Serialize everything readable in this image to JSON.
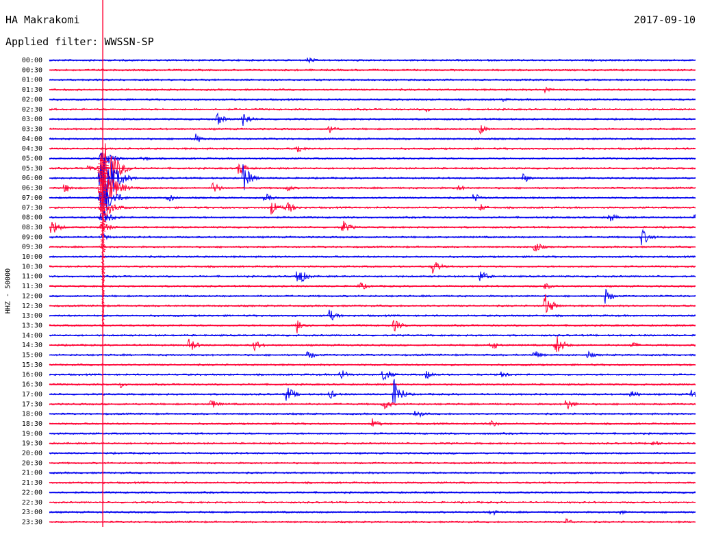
{
  "header": {
    "station": "HA Makrakomi",
    "date": "2017-09-10",
    "filter": "Applied filter: WWSSN-SP"
  },
  "axis": {
    "label": "HHZ - 50000"
  },
  "colors": {
    "even_row": "#0000ee",
    "odd_row": "#ff0033",
    "marker": "#ff0033",
    "background": "#ffffff"
  },
  "chart_data": {
    "type": "line",
    "subtype": "helicorder",
    "ylabel": "HHZ - 50000",
    "row_interval_minutes": 30,
    "row_labels": [
      "00:00",
      "00:30",
      "01:00",
      "01:30",
      "02:00",
      "02:30",
      "03:00",
      "03:30",
      "04:00",
      "04:30",
      "05:00",
      "05:30",
      "06:00",
      "06:30",
      "07:00",
      "07:30",
      "08:00",
      "08:30",
      "09:00",
      "09:30",
      "10:00",
      "10:30",
      "11:00",
      "11:30",
      "12:00",
      "12:30",
      "13:00",
      "13:30",
      "14:00",
      "14:30",
      "15:00",
      "15:30",
      "16:00",
      "16:30",
      "17:00",
      "17:30",
      "18:00",
      "18:30",
      "19:00",
      "19:30",
      "20:00",
      "20:30",
      "21:00",
      "21:30",
      "22:00",
      "22:30",
      "23:00",
      "23:30"
    ],
    "marker_minute": 2.5,
    "events": [
      {
        "row": "00:00",
        "minute": 12.0,
        "amplitude": 6
      },
      {
        "row": "01:30",
        "minute": 23.0,
        "amplitude": 6
      },
      {
        "row": "02:00",
        "minute": 21.0,
        "amplitude": 4
      },
      {
        "row": "02:30",
        "minute": 17.5,
        "amplitude": 4
      },
      {
        "row": "03:00",
        "minute": 7.8,
        "amplitude": 10
      },
      {
        "row": "03:00",
        "minute": 9.0,
        "amplitude": 12
      },
      {
        "row": "03:30",
        "minute": 13.0,
        "amplitude": 8
      },
      {
        "row": "03:30",
        "minute": 20.0,
        "amplitude": 8
      },
      {
        "row": "04:00",
        "minute": 6.8,
        "amplitude": 8
      },
      {
        "row": "04:30",
        "minute": 11.5,
        "amplitude": 8
      },
      {
        "row": "05:00",
        "minute": 4.3,
        "amplitude": 6
      },
      {
        "row": "05:30",
        "minute": 1.8,
        "amplitude": 6
      },
      {
        "row": "05:30",
        "minute": 8.8,
        "amplitude": 12
      },
      {
        "row": "06:00",
        "minute": 9.0,
        "amplitude": 22
      },
      {
        "row": "06:00",
        "minute": 22.0,
        "amplitude": 8
      },
      {
        "row": "06:30",
        "minute": 0.7,
        "amplitude": 8
      },
      {
        "row": "06:30",
        "minute": 7.6,
        "amplitude": 10
      },
      {
        "row": "06:30",
        "minute": 11.0,
        "amplitude": 6
      },
      {
        "row": "06:30",
        "minute": 19.0,
        "amplitude": 6
      },
      {
        "row": "07:00",
        "minute": 5.5,
        "amplitude": 8
      },
      {
        "row": "07:00",
        "minute": 10.0,
        "amplitude": 8
      },
      {
        "row": "07:00",
        "minute": 19.7,
        "amplitude": 8
      },
      {
        "row": "07:30",
        "minute": 10.3,
        "amplitude": 12
      },
      {
        "row": "07:30",
        "minute": 11.0,
        "amplitude": 12
      },
      {
        "row": "07:30",
        "minute": 20.0,
        "amplitude": 6
      },
      {
        "row": "08:00",
        "minute": 26.0,
        "amplitude": 8
      },
      {
        "row": "08:00",
        "minute": 29.9,
        "amplitude": 8
      },
      {
        "row": "08:30",
        "minute": 0.1,
        "amplitude": 14
      },
      {
        "row": "08:30",
        "minute": 13.6,
        "amplitude": 12
      },
      {
        "row": "09:00",
        "minute": 27.5,
        "amplitude": 14
      },
      {
        "row": "09:30",
        "minute": 22.5,
        "amplitude": 10
      },
      {
        "row": "10:30",
        "minute": 17.8,
        "amplitude": 12
      },
      {
        "row": "11:00",
        "minute": 11.5,
        "amplitude": 18
      },
      {
        "row": "11:00",
        "minute": 20.0,
        "amplitude": 10
      },
      {
        "row": "11:30",
        "minute": 14.4,
        "amplitude": 8
      },
      {
        "row": "11:30",
        "minute": 23.0,
        "amplitude": 6
      },
      {
        "row": "12:00",
        "minute": 25.8,
        "amplitude": 12
      },
      {
        "row": "12:30",
        "minute": 23.0,
        "amplitude": 20
      },
      {
        "row": "13:00",
        "minute": 13.0,
        "amplitude": 10
      },
      {
        "row": "13:30",
        "minute": 11.5,
        "amplitude": 12
      },
      {
        "row": "13:30",
        "minute": 16.0,
        "amplitude": 10
      },
      {
        "row": "14:30",
        "minute": 6.5,
        "amplitude": 12
      },
      {
        "row": "14:30",
        "minute": 9.5,
        "amplitude": 10
      },
      {
        "row": "14:30",
        "minute": 20.5,
        "amplitude": 8
      },
      {
        "row": "14:30",
        "minute": 23.5,
        "amplitude": 18
      },
      {
        "row": "14:30",
        "minute": 27.0,
        "amplitude": 6
      },
      {
        "row": "15:00",
        "minute": 12.0,
        "amplitude": 8
      },
      {
        "row": "15:00",
        "minute": 22.5,
        "amplitude": 8
      },
      {
        "row": "15:00",
        "minute": 25.0,
        "amplitude": 6
      },
      {
        "row": "16:00",
        "minute": 13.5,
        "amplitude": 10
      },
      {
        "row": "16:00",
        "minute": 15.5,
        "amplitude": 12
      },
      {
        "row": "16:00",
        "minute": 17.5,
        "amplitude": 8
      },
      {
        "row": "16:00",
        "minute": 21.0,
        "amplitude": 6
      },
      {
        "row": "16:30",
        "minute": 3.3,
        "amplitude": 6
      },
      {
        "row": "17:00",
        "minute": 11.0,
        "amplitude": 14
      },
      {
        "row": "17:00",
        "minute": 13.0,
        "amplitude": 8
      },
      {
        "row": "17:00",
        "minute": 16.0,
        "amplitude": 24
      },
      {
        "row": "17:00",
        "minute": 27.0,
        "amplitude": 8
      },
      {
        "row": "17:00",
        "minute": 29.8,
        "amplitude": 8
      },
      {
        "row": "17:30",
        "minute": 7.5,
        "amplitude": 8
      },
      {
        "row": "17:30",
        "minute": 15.5,
        "amplitude": 10
      },
      {
        "row": "17:30",
        "minute": 24.0,
        "amplitude": 10
      },
      {
        "row": "18:00",
        "minute": 17.0,
        "amplitude": 8
      },
      {
        "row": "18:30",
        "minute": 15.0,
        "amplitude": 8
      },
      {
        "row": "18:30",
        "minute": 20.5,
        "amplitude": 6
      },
      {
        "row": "19:30",
        "minute": 28.0,
        "amplitude": 6
      },
      {
        "row": "23:00",
        "minute": 20.5,
        "amplitude": 6
      },
      {
        "row": "23:00",
        "minute": 26.5,
        "amplitude": 4
      },
      {
        "row": "23:30",
        "minute": 24.0,
        "amplitude": 6
      }
    ],
    "major_event": {
      "row": "05:30",
      "minute": 2.5,
      "duration_rows": 8,
      "amplitude": 110
    }
  }
}
